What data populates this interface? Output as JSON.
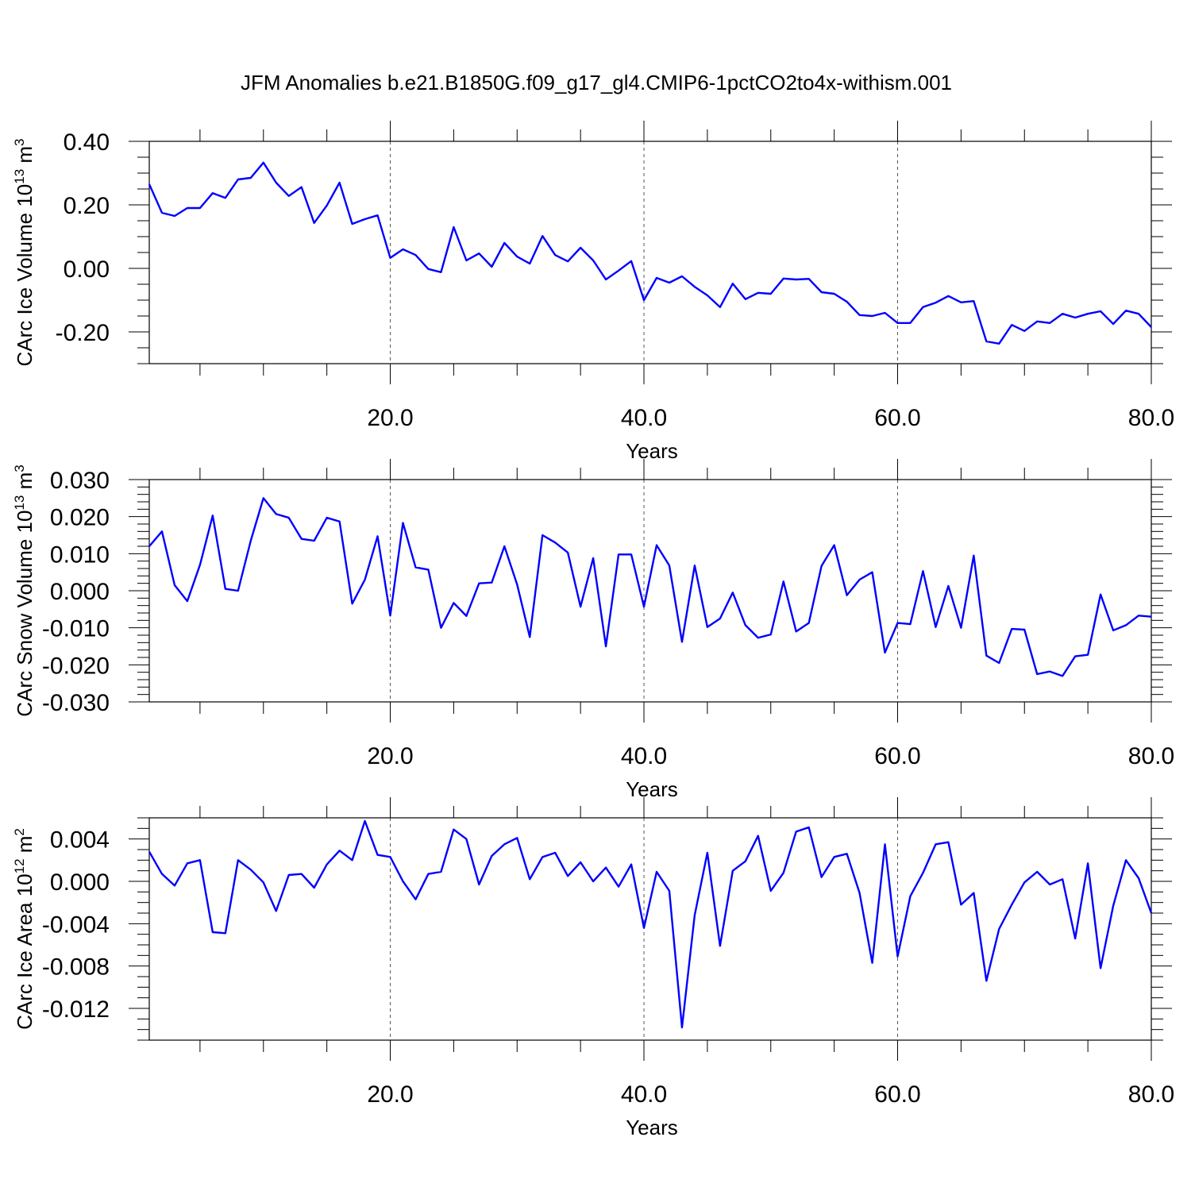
{
  "title": "JFM Anomalies b.e21.B1850G.f09_g17_gl4.CMIP6-1pctCO2to4x-withism.001",
  "line_color": "#0000ff",
  "chart_data": [
    {
      "type": "line",
      "xlabel": "Years",
      "ylabel": {
        "base": "CArc Ice Volume 10",
        "exponent": "13",
        "unit": " m",
        "unit_exponent": "3"
      },
      "xlim": [
        1,
        80
      ],
      "ylim": [
        -0.3,
        0.4
      ],
      "xticks": [
        "20.0",
        "40.0",
        "60.0",
        "80.0"
      ],
      "xtick_values": [
        20,
        40,
        60,
        80
      ],
      "yticks": [
        "0.40",
        "0.20",
        "0.00",
        "-0.20"
      ],
      "ytick_values": [
        0.4,
        0.2,
        0.0,
        -0.2
      ],
      "y_minor_step": 0.05,
      "grid_x": [
        20,
        40,
        60
      ],
      "x": [
        1,
        2,
        3,
        4,
        5,
        6,
        7,
        8,
        9,
        10,
        11,
        12,
        13,
        14,
        15,
        16,
        17,
        18,
        19,
        20,
        21,
        22,
        23,
        24,
        25,
        26,
        27,
        28,
        29,
        30,
        31,
        32,
        33,
        34,
        35,
        36,
        37,
        38,
        39,
        40,
        41,
        42,
        43,
        44,
        45,
        46,
        47,
        48,
        49,
        50,
        51,
        52,
        53,
        54,
        55,
        56,
        57,
        58,
        59,
        60,
        61,
        62,
        63,
        64,
        65,
        66,
        67,
        68,
        69,
        70,
        71,
        72,
        73,
        74,
        75,
        76,
        77,
        78,
        79,
        80
      ],
      "y": [
        0.265,
        0.175,
        0.165,
        0.19,
        0.19,
        0.237,
        0.222,
        0.28,
        0.285,
        0.333,
        0.27,
        0.228,
        0.256,
        0.143,
        0.198,
        0.27,
        0.14,
        0.155,
        0.167,
        0.033,
        0.06,
        0.042,
        -0.002,
        -0.012,
        0.13,
        0.025,
        0.047,
        0.005,
        0.08,
        0.037,
        0.015,
        0.102,
        0.042,
        0.022,
        0.065,
        0.025,
        -0.035,
        -0.007,
        0.023,
        -0.1,
        -0.03,
        -0.045,
        -0.025,
        -0.058,
        -0.085,
        -0.122,
        -0.048,
        -0.097,
        -0.077,
        -0.08,
        -0.032,
        -0.035,
        -0.033,
        -0.075,
        -0.08,
        -0.105,
        -0.147,
        -0.15,
        -0.14,
        -0.172,
        -0.172,
        -0.122,
        -0.108,
        -0.087,
        -0.107,
        -0.103,
        -0.23,
        -0.237,
        -0.178,
        -0.197,
        -0.167,
        -0.172,
        -0.143,
        -0.155,
        -0.143,
        -0.135,
        -0.175,
        -0.133,
        -0.143,
        -0.185
      ]
    },
    {
      "type": "line",
      "xlabel": "Years",
      "ylabel": {
        "base": "CArc Snow Volume 10",
        "exponent": "13",
        "unit": " m",
        "unit_exponent": "3"
      },
      "xlim": [
        1,
        80
      ],
      "ylim": [
        -0.03,
        0.03
      ],
      "xticks": [
        "20.0",
        "40.0",
        "60.0",
        "80.0"
      ],
      "xtick_values": [
        20,
        40,
        60,
        80
      ],
      "yticks": [
        "0.030",
        "0.020",
        "0.010",
        "0.000",
        "-0.010",
        "-0.020",
        "-0.030"
      ],
      "ytick_values": [
        0.03,
        0.02,
        0.01,
        0.0,
        -0.01,
        -0.02,
        -0.03
      ],
      "y_minor_step": 0.002,
      "grid_x": [
        20,
        40,
        60
      ],
      "x": [
        1,
        2,
        3,
        4,
        5,
        6,
        7,
        8,
        9,
        10,
        11,
        12,
        13,
        14,
        15,
        16,
        17,
        18,
        19,
        20,
        21,
        22,
        23,
        24,
        25,
        26,
        27,
        28,
        29,
        30,
        31,
        32,
        33,
        34,
        35,
        36,
        37,
        38,
        39,
        40,
        41,
        42,
        43,
        44,
        45,
        46,
        47,
        48,
        49,
        50,
        51,
        52,
        53,
        54,
        55,
        56,
        57,
        58,
        59,
        60,
        61,
        62,
        63,
        64,
        65,
        66,
        67,
        68,
        69,
        70,
        71,
        72,
        73,
        74,
        75,
        76,
        77,
        78,
        79,
        80
      ],
      "y": [
        0.012,
        0.016,
        0.0015,
        -0.0028,
        0.007,
        0.0203,
        0.0005,
        0.0,
        0.0135,
        0.025,
        0.0207,
        0.0197,
        0.014,
        0.0135,
        0.0197,
        0.0187,
        -0.0035,
        0.003,
        0.0147,
        -0.0067,
        0.0183,
        0.0063,
        0.0057,
        -0.01,
        -0.0033,
        -0.0068,
        0.002,
        0.0022,
        0.012,
        0.0017,
        -0.0125,
        0.015,
        0.013,
        0.0103,
        -0.0043,
        0.0088,
        -0.015,
        0.0098,
        0.0098,
        -0.0043,
        0.0123,
        0.0068,
        -0.0138,
        0.0068,
        -0.0098,
        -0.0075,
        -0.0005,
        -0.0093,
        -0.0127,
        -0.0118,
        0.0025,
        -0.011,
        -0.0087,
        0.0067,
        0.0123,
        -0.0012,
        0.003,
        0.005,
        -0.0167,
        -0.0087,
        -0.009,
        0.0053,
        -0.0098,
        0.0013,
        -0.01,
        0.0095,
        -0.0175,
        -0.0195,
        -0.0103,
        -0.0105,
        -0.0225,
        -0.0218,
        -0.023,
        -0.0177,
        -0.0173,
        -0.001,
        -0.0107,
        -0.0093,
        -0.0067,
        -0.007
      ]
    },
    {
      "type": "line",
      "xlabel": "Years",
      "ylabel": {
        "base": "CArc Ice Area 10",
        "exponent": "12",
        "unit": " m",
        "unit_exponent": "2"
      },
      "xlim": [
        1,
        80
      ],
      "ylim": [
        -0.015,
        0.006
      ],
      "xticks": [
        "20.0",
        "40.0",
        "60.0",
        "80.0"
      ],
      "xtick_values": [
        20,
        40,
        60,
        80
      ],
      "yticks": [
        "0.004",
        "0.000",
        "-0.004",
        "-0.008",
        "-0.012"
      ],
      "ytick_values": [
        0.004,
        0.0,
        -0.004,
        -0.008,
        -0.012
      ],
      "y_minor_step": 0.001,
      "grid_x": [
        20,
        40,
        60
      ],
      "x": [
        1,
        2,
        3,
        4,
        5,
        6,
        7,
        8,
        9,
        10,
        11,
        12,
        13,
        14,
        15,
        16,
        17,
        18,
        19,
        20,
        21,
        22,
        23,
        24,
        25,
        26,
        27,
        28,
        29,
        30,
        31,
        32,
        33,
        34,
        35,
        36,
        37,
        38,
        39,
        40,
        41,
        42,
        43,
        44,
        45,
        46,
        47,
        48,
        49,
        50,
        51,
        52,
        53,
        54,
        55,
        56,
        57,
        58,
        59,
        60,
        61,
        62,
        63,
        64,
        65,
        66,
        67,
        68,
        69,
        70,
        71,
        72,
        73,
        74,
        75,
        76,
        77,
        78,
        79,
        80
      ],
      "y": [
        0.0028,
        0.0007,
        -0.0004,
        0.0017,
        0.002,
        -0.0048,
        -0.0049,
        0.002,
        0.0011,
        -0.0001,
        -0.0028,
        0.0006,
        0.0007,
        -0.0006,
        0.0016,
        0.0029,
        0.002,
        0.0057,
        0.0025,
        0.0023,
        0.0,
        -0.0017,
        0.0007,
        0.0009,
        0.0049,
        0.004,
        -0.0003,
        0.0024,
        0.0035,
        0.0041,
        0.0002,
        0.0023,
        0.0027,
        0.0005,
        0.0018,
        0.0,
        0.0013,
        -0.0005,
        0.0016,
        -0.0044,
        0.0009,
        -0.0009,
        -0.0138,
        -0.0032,
        0.0027,
        -0.0061,
        0.001,
        0.0019,
        0.0043,
        -0.0009,
        0.0008,
        0.0047,
        0.0051,
        0.0004,
        0.0023,
        0.0026,
        -0.0011,
        -0.0077,
        0.0035,
        -0.0071,
        -0.0014,
        0.0008,
        0.0035,
        0.0037,
        -0.0022,
        -0.0011,
        -0.0094,
        -0.0045,
        -0.0022,
        -0.0001,
        0.0009,
        -0.0003,
        0.0002,
        -0.0054,
        0.0017,
        -0.0082,
        -0.0023,
        0.002,
        0.0003,
        -0.003
      ]
    }
  ]
}
